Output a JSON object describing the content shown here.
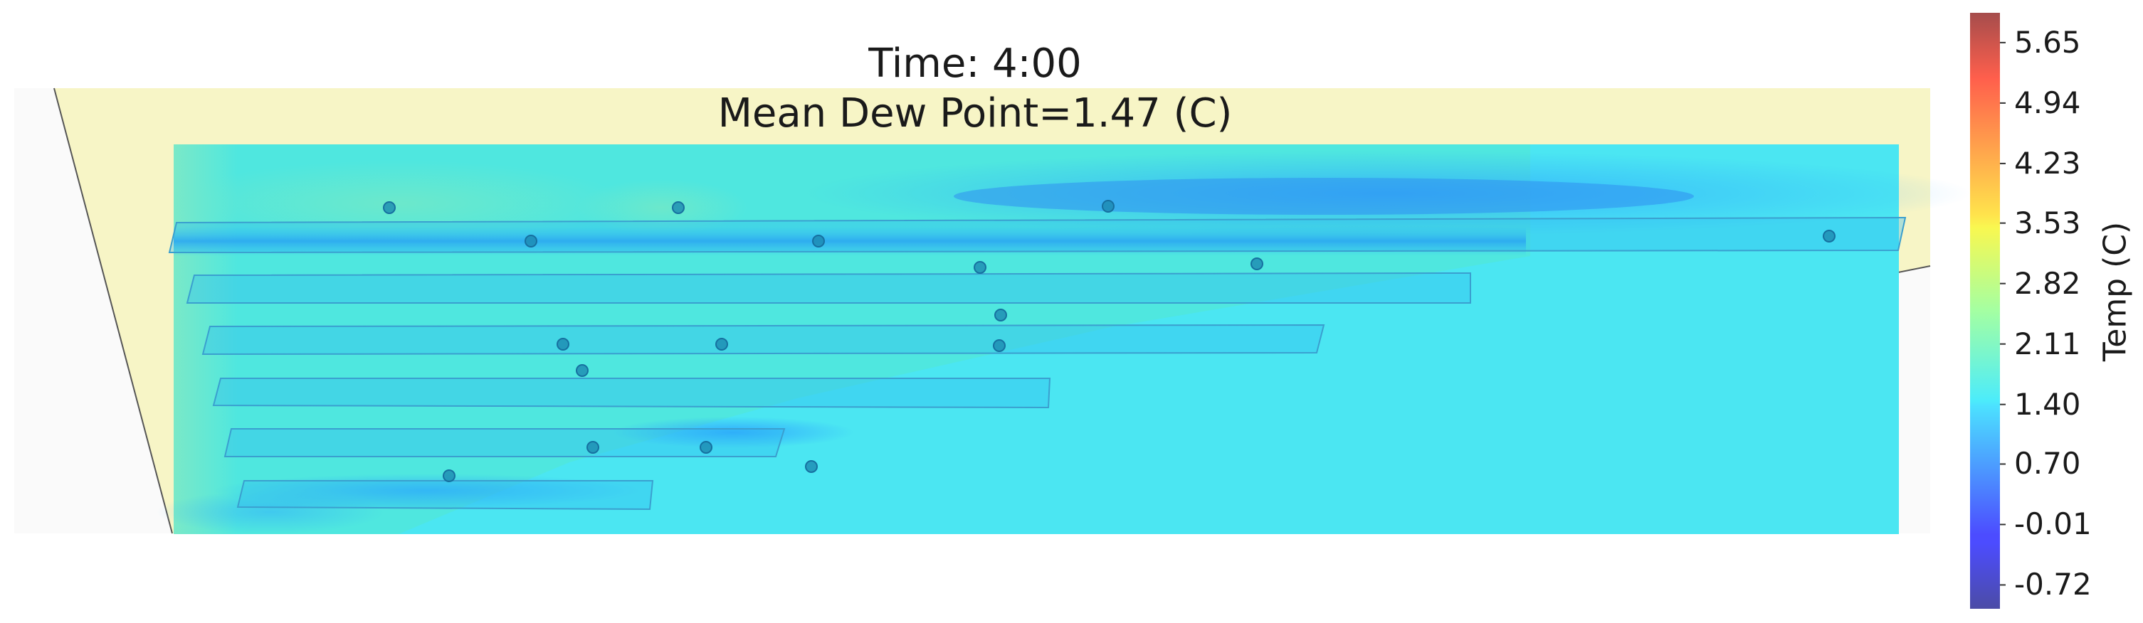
{
  "chart_data": {
    "type": "heatmap",
    "title_lines": [
      "Time: 4:00",
      "Mean Dew Point=1.47 (C)"
    ],
    "time": "4:00",
    "mean_dew_point_c": 1.47,
    "colorbar": {
      "label": "Temp (C)",
      "min": -1.0,
      "max": 6.0,
      "ticks": [
        5.65,
        4.94,
        4.23,
        3.53,
        2.82,
        2.11,
        1.4,
        0.7,
        -0.01,
        -0.72
      ],
      "tick_labels": [
        "5.65",
        "4.94",
        "4.23",
        "3.53",
        "2.82",
        "2.11",
        "1.40",
        "0.70",
        "-0.01",
        "-0.72"
      ],
      "colormap": "jet",
      "alpha": 0.7
    },
    "field": {
      "background_value_c": 1.5,
      "dominant_color": "#4be6f2",
      "high_region_value_c": 1.9,
      "low_streak_value_c": 0.9
    },
    "sensors": [
      {
        "id": 1,
        "value_c": 1.9
      },
      {
        "id": 2,
        "value_c": 1.9
      },
      {
        "id": 3,
        "value_c": 0.9
      },
      {
        "id": 4,
        "value_c": 1.0
      },
      {
        "id": 5,
        "value_c": 1.0
      },
      {
        "id": 6,
        "value_c": 1.1
      },
      {
        "id": 7,
        "value_c": 1.7
      },
      {
        "id": 8,
        "value_c": 1.5
      },
      {
        "id": 9,
        "value_c": 1.4
      },
      {
        "id": 10,
        "value_c": 1.7
      },
      {
        "id": 11,
        "value_c": 1.6
      },
      {
        "id": 12,
        "value_c": 1.5
      },
      {
        "id": 13,
        "value_c": 1.8
      },
      {
        "id": 14,
        "value_c": 1.8
      },
      {
        "id": 15,
        "value_c": 1.7
      },
      {
        "id": 16,
        "value_c": 1.2
      },
      {
        "id": 17,
        "value_c": 1.3
      }
    ],
    "colors": {
      "floor": "#f7f5c6",
      "outline": "#555555",
      "sensor_fill": "#1c8ab0"
    }
  }
}
